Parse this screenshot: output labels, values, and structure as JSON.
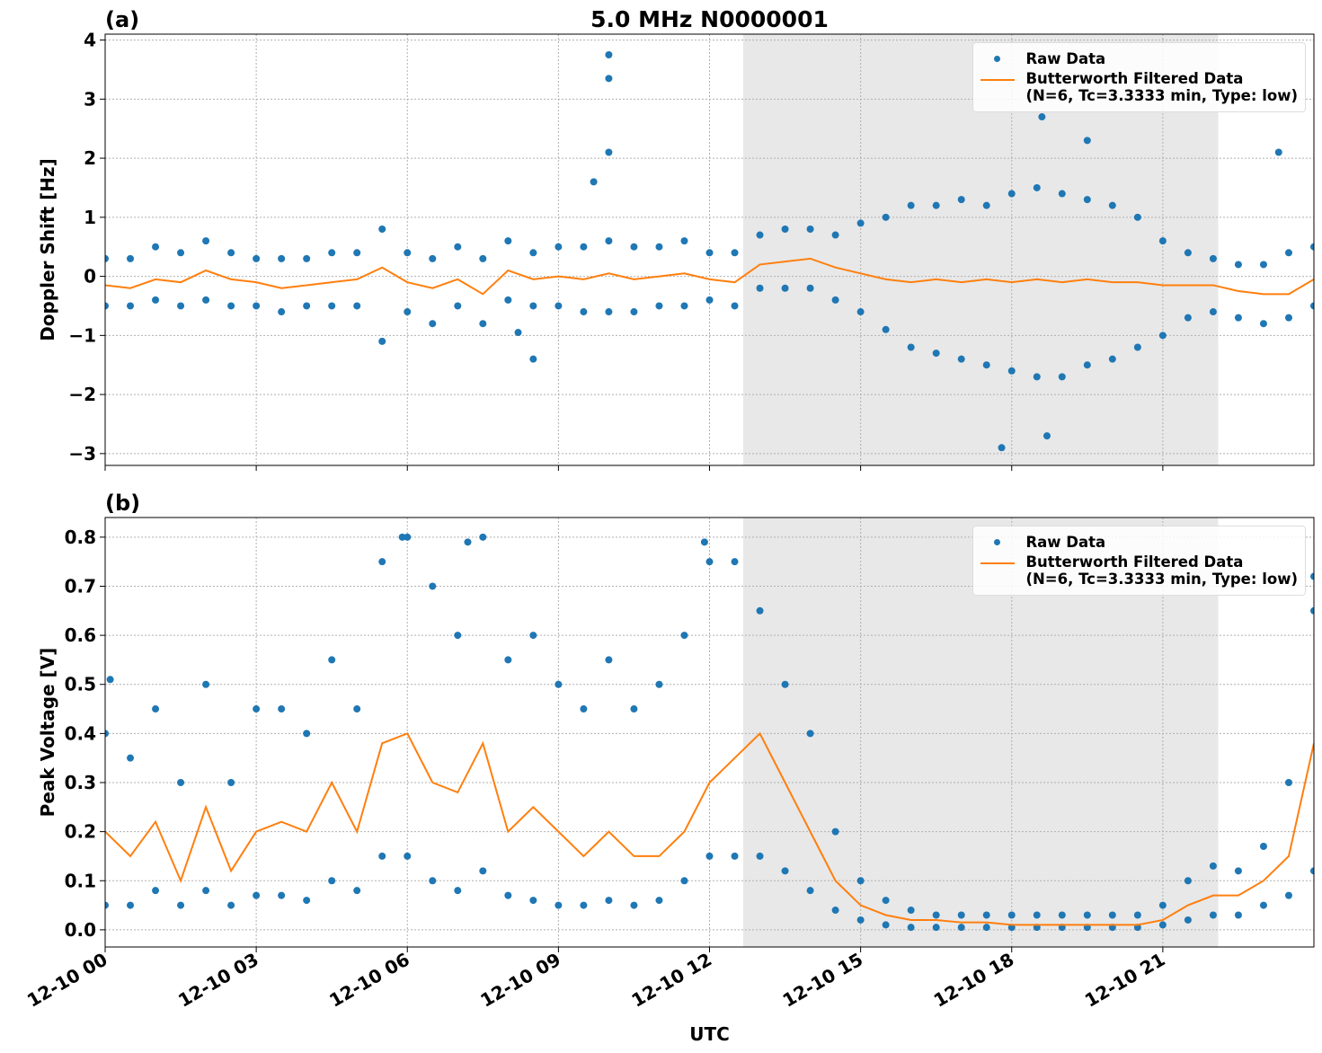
{
  "chart_data": [
    {
      "type": "scatter-line",
      "title": "5.0 MHz N0000001",
      "panel_label": "(a)",
      "ylabel": "Doppler Shift [Hz]",
      "xlim": [
        0,
        24
      ],
      "xticks": [
        0,
        3,
        6,
        9,
        12,
        15,
        18,
        21
      ],
      "ylim": [
        -3.2,
        4.1
      ],
      "yticks": [
        {
          "value": -3,
          "label": "−3"
        },
        {
          "value": -2,
          "label": "−2"
        },
        {
          "value": -1,
          "label": "−1"
        },
        0,
        1,
        2,
        3,
        4
      ],
      "grid": true,
      "legend": "upper right",
      "shade": [
        12.67,
        22.1
      ],
      "series": [
        {
          "name": "Raw Data",
          "color": "#1f77b4",
          "kind": "points",
          "x": [
            0,
            0.5,
            1,
            1.5,
            2,
            2.5,
            3,
            3.5,
            4,
            4.5,
            5,
            5.5,
            6,
            6.5,
            7,
            7.5,
            8,
            8.5,
            9,
            9.5,
            10,
            10.5,
            11,
            11.5,
            12,
            12.5,
            13,
            13.5,
            14,
            14.5,
            15,
            15.5,
            16,
            16.5,
            17,
            17.5,
            18,
            18.5,
            19,
            19.5,
            20,
            20.5,
            21,
            21.5,
            22,
            22.5,
            23,
            23.5,
            24,
            0,
            0.5,
            1,
            1.5,
            2,
            2.5,
            3,
            3.5,
            4,
            4.5,
            5,
            5.5,
            6,
            6.5,
            7,
            7.5,
            8,
            8.5,
            9,
            9.5,
            10,
            10.5,
            11,
            11.5,
            12,
            12.5,
            13,
            13.5,
            14,
            14.5,
            15,
            15.5,
            16,
            16.5,
            17,
            17.5,
            18,
            18.5,
            19,
            19.5,
            20,
            20.5,
            21,
            21.5,
            22,
            22.5,
            23,
            23.5,
            24,
            10,
            10,
            10,
            9.7,
            8.5,
            17.8,
            18.7,
            18.6,
            19.5,
            23.3,
            8.2
          ],
          "values": [
            0.3,
            0.3,
            0.5,
            0.4,
            0.6,
            0.4,
            0.3,
            0.3,
            0.3,
            0.4,
            0.4,
            0.8,
            0.4,
            0.3,
            0.5,
            0.3,
            0.6,
            0.4,
            0.5,
            0.5,
            0.6,
            0.5,
            0.5,
            0.6,
            0.4,
            0.4,
            0.7,
            0.8,
            0.8,
            0.7,
            0.9,
            1.0,
            1.2,
            1.2,
            1.3,
            1.2,
            1.4,
            1.5,
            1.4,
            1.3,
            1.2,
            1.0,
            0.6,
            0.4,
            0.3,
            0.2,
            0.2,
            0.4,
            0.5,
            -0.5,
            -0.5,
            -0.4,
            -0.5,
            -0.4,
            -0.5,
            -0.5,
            -0.6,
            -0.5,
            -0.5,
            -0.5,
            -1.1,
            -0.6,
            -0.8,
            -0.5,
            -0.8,
            -0.4,
            -0.5,
            -0.5,
            -0.6,
            -0.6,
            -0.6,
            -0.5,
            -0.5,
            -0.4,
            -0.5,
            -0.2,
            -0.2,
            -0.2,
            -0.4,
            -0.6,
            -0.9,
            -1.2,
            -1.3,
            -1.4,
            -1.5,
            -1.6,
            -1.7,
            -1.7,
            -1.5,
            -1.4,
            -1.2,
            -1.0,
            -0.7,
            -0.6,
            -0.7,
            -0.8,
            -0.7,
            -0.5,
            3.75,
            3.35,
            2.1,
            1.6,
            -1.4,
            -2.9,
            -2.7,
            2.7,
            2.3,
            2.1,
            -0.95
          ]
        },
        {
          "name": "Butterworth Filtered Data\n(N=6, Tc=3.3333 min, Type: low)",
          "color": "#ff7f0e",
          "kind": "line",
          "x": [
            0,
            0.5,
            1,
            1.5,
            2,
            2.5,
            3,
            3.5,
            4,
            4.5,
            5,
            5.5,
            6,
            6.5,
            7,
            7.5,
            8,
            8.5,
            9,
            9.5,
            10,
            10.5,
            11,
            11.5,
            12,
            12.5,
            13,
            13.5,
            14,
            14.5,
            15,
            15.5,
            16,
            16.5,
            17,
            17.5,
            18,
            18.5,
            19,
            19.5,
            20,
            20.5,
            21,
            21.5,
            22,
            22.5,
            23,
            23.5,
            24
          ],
          "values": [
            -0.15,
            -0.2,
            -0.05,
            -0.1,
            0.1,
            -0.05,
            -0.1,
            -0.2,
            -0.15,
            -0.1,
            -0.05,
            0.15,
            -0.1,
            -0.2,
            -0.05,
            -0.3,
            0.1,
            -0.05,
            0,
            -0.05,
            0.05,
            -0.05,
            0,
            0.05,
            -0.05,
            -0.1,
            0.2,
            0.25,
            0.3,
            0.15,
            0.05,
            -0.05,
            -0.1,
            -0.05,
            -0.1,
            -0.05,
            -0.1,
            -0.05,
            -0.1,
            -0.05,
            -0.1,
            -0.1,
            -0.15,
            -0.15,
            -0.15,
            -0.25,
            -0.3,
            -0.3,
            -0.05
          ]
        }
      ]
    },
    {
      "type": "scatter-line",
      "panel_label": "(b)",
      "ylabel": "Peak Voltage [V]",
      "xlabel": "UTC",
      "xlim": [
        0,
        24
      ],
      "xticks": [
        {
          "value": 0,
          "label": "12-10 00"
        },
        {
          "value": 3,
          "label": "12-10 03"
        },
        {
          "value": 6,
          "label": "12-10 06"
        },
        {
          "value": 9,
          "label": "12-10 09"
        },
        {
          "value": 12,
          "label": "12-10 12"
        },
        {
          "value": 15,
          "label": "12-10 15"
        },
        {
          "value": 18,
          "label": "12-10 18"
        },
        {
          "value": 21,
          "label": "12-10 21"
        }
      ],
      "ylim": [
        -0.035,
        0.84
      ],
      "yticks": [
        {
          "value": 0,
          "label": "0.0"
        },
        0.1,
        0.2,
        0.3,
        0.4,
        0.5,
        0.6,
        0.7,
        0.8
      ],
      "grid": true,
      "legend": "upper right",
      "shade": [
        12.67,
        22.1
      ],
      "series": [
        {
          "name": "Raw Data",
          "color": "#1f77b4",
          "kind": "points",
          "x": [
            0,
            0.5,
            1,
            1.5,
            2,
            2.5,
            3,
            3.5,
            4,
            4.5,
            5,
            5.5,
            6,
            6.5,
            7,
            7.5,
            8,
            8.5,
            9,
            9.5,
            10,
            10.5,
            11,
            11.5,
            12,
            12.5,
            13,
            13.5,
            14,
            14.5,
            15,
            15.5,
            16,
            16.5,
            17,
            17.5,
            18,
            18.5,
            19,
            19.5,
            20,
            20.5,
            21,
            21.5,
            22,
            22.5,
            23,
            23.5,
            24,
            0,
            0.5,
            1,
            1.5,
            2,
            2.5,
            3,
            3.5,
            4,
            4.5,
            5,
            5.5,
            6,
            6.5,
            7,
            7.5,
            8,
            8.5,
            9,
            9.5,
            10,
            10.5,
            11,
            11.5,
            12,
            12.5,
            13,
            13.5,
            14,
            14.5,
            15,
            15.5,
            16,
            16.5,
            17,
            17.5,
            18,
            18.5,
            19,
            19.5,
            20,
            20.5,
            21,
            21.5,
            22,
            22.5,
            23,
            23.5,
            24,
            5.9,
            7.2,
            11.9,
            0.1,
            24
          ],
          "values": [
            0.4,
            0.35,
            0.45,
            0.3,
            0.5,
            0.3,
            0.45,
            0.45,
            0.4,
            0.55,
            0.45,
            0.75,
            0.8,
            0.7,
            0.6,
            0.8,
            0.55,
            0.6,
            0.5,
            0.45,
            0.55,
            0.45,
            0.5,
            0.6,
            0.75,
            0.75,
            0.65,
            0.5,
            0.4,
            0.2,
            0.1,
            0.06,
            0.04,
            0.03,
            0.03,
            0.03,
            0.03,
            0.03,
            0.03,
            0.03,
            0.03,
            0.03,
            0.05,
            0.1,
            0.13,
            0.12,
            0.17,
            0.3,
            0.65,
            0.05,
            0.05,
            0.08,
            0.05,
            0.08,
            0.05,
            0.07,
            0.07,
            0.06,
            0.1,
            0.08,
            0.15,
            0.15,
            0.1,
            0.08,
            0.12,
            0.07,
            0.06,
            0.05,
            0.05,
            0.06,
            0.05,
            0.06,
            0.1,
            0.15,
            0.15,
            0.15,
            0.12,
            0.08,
            0.04,
            0.02,
            0.01,
            0.005,
            0.005,
            0.005,
            0.005,
            0.005,
            0.005,
            0.005,
            0.005,
            0.005,
            0.005,
            0.01,
            0.02,
            0.03,
            0.03,
            0.05,
            0.07,
            0.12,
            0.8,
            0.79,
            0.79,
            0.51,
            0.72
          ]
        },
        {
          "name": "Butterworth Filtered Data\n(N=6, Tc=3.3333 min, Type: low)",
          "color": "#ff7f0e",
          "kind": "line",
          "x": [
            0,
            0.5,
            1,
            1.5,
            2,
            2.5,
            3,
            3.5,
            4,
            4.5,
            5,
            5.5,
            6,
            6.5,
            7,
            7.5,
            8,
            8.5,
            9,
            9.5,
            10,
            10.5,
            11,
            11.5,
            12,
            12.5,
            13,
            13.5,
            14,
            14.5,
            15,
            15.5,
            16,
            16.5,
            17,
            17.5,
            18,
            18.5,
            19,
            19.5,
            20,
            20.5,
            21,
            21.5,
            22,
            22.5,
            23,
            23.5,
            24
          ],
          "values": [
            0.2,
            0.15,
            0.22,
            0.1,
            0.25,
            0.12,
            0.2,
            0.22,
            0.2,
            0.3,
            0.2,
            0.38,
            0.4,
            0.3,
            0.28,
            0.38,
            0.2,
            0.25,
            0.2,
            0.15,
            0.2,
            0.15,
            0.15,
            0.2,
            0.3,
            0.35,
            0.4,
            0.3,
            0.2,
            0.1,
            0.05,
            0.03,
            0.02,
            0.02,
            0.015,
            0.015,
            0.01,
            0.01,
            0.01,
            0.01,
            0.01,
            0.01,
            0.02,
            0.05,
            0.07,
            0.07,
            0.1,
            0.15,
            0.38
          ]
        }
      ]
    }
  ]
}
